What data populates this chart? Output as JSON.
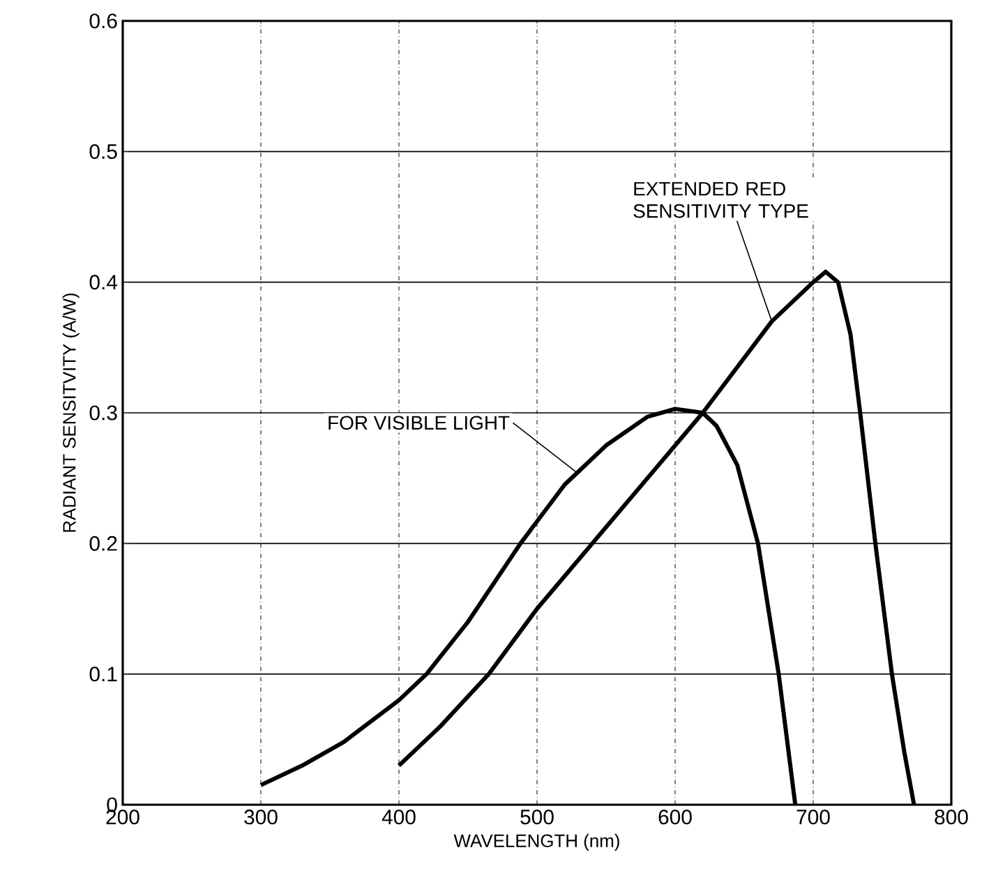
{
  "chart_data": {
    "type": "line",
    "xlabel": "WAVELENGTH (nm)",
    "ylabel": "RADIANT SENSITVITY (A/W)",
    "xlim": [
      200,
      800
    ],
    "ylim": [
      0,
      0.6
    ],
    "xticks": [
      200,
      300,
      400,
      500,
      600,
      700,
      800
    ],
    "yticks": [
      0,
      0.1,
      0.2,
      0.3,
      0.4,
      0.5,
      0.6
    ],
    "grid": true,
    "marker": "none",
    "line_style": "solid",
    "annotations": [
      {
        "text": "FOR VISIBLE LIGHT",
        "x": 528,
        "y": 0.255
      },
      {
        "text": "EXTENDED RED SENSITIVITY TYPE",
        "x": 670,
        "y": 0.37
      }
    ],
    "series": [
      {
        "color": "#000000",
        "x": [
          300,
          330,
          360,
          400,
          420,
          450,
          488,
          520,
          550,
          580,
          600,
          620,
          630,
          645,
          660,
          675,
          681,
          687
        ],
        "values": [
          0.015,
          0.03,
          0.048,
          0.08,
          0.1,
          0.14,
          0.2,
          0.245,
          0.275,
          0.297,
          0.303,
          0.3,
          0.29,
          0.26,
          0.2,
          0.1,
          0.05,
          0
        ]
      },
      {
        "color": "#000000",
        "x": [
          400,
          430,
          465,
          500,
          540,
          580,
          620,
          670,
          700,
          709,
          718,
          727,
          734,
          745,
          757,
          766,
          773
        ],
        "values": [
          0.03,
          0.06,
          0.1,
          0.15,
          0.2,
          0.25,
          0.3,
          0.37,
          0.4,
          0.408,
          0.4,
          0.36,
          0.3,
          0.2,
          0.1,
          0.04,
          0
        ]
      }
    ]
  }
}
